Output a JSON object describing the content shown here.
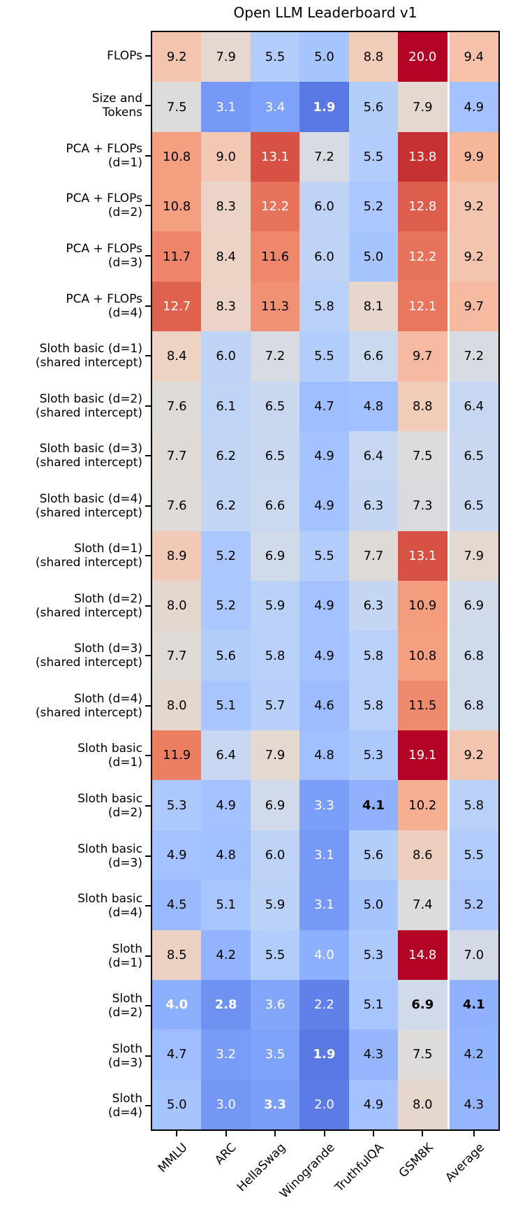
{
  "title": "Open LLM Leaderboard v1",
  "chart_data": {
    "type": "heatmap",
    "title": "Open LLM Leaderboard v1",
    "colormap": "coolwarm",
    "color_norm": {
      "vmin": 0.5,
      "vmax": 14.5
    },
    "max_color": "#b40426",
    "min_color": "#3b4cc0",
    "mid_color": "#dddcdb",
    "value_format": "one_decimal",
    "bold_rule": "column_minimum",
    "white_text_below": 4.05,
    "white_text_above": 12.05,
    "columns": [
      "MMLU",
      "ARC",
      "HellaSwag",
      "Winogrande",
      "TruthfulQA",
      "GSM8K",
      "Average"
    ],
    "separator_before_column": 6,
    "rows": [
      {
        "label": "FLOPs",
        "label_lines": [
          "FLOPs"
        ],
        "values": [
          9.2,
          7.9,
          5.5,
          5.0,
          8.8,
          20.0,
          9.4
        ]
      },
      {
        "label": "Size and Tokens",
        "label_lines": [
          "Size and",
          "Tokens"
        ],
        "values": [
          7.5,
          3.1,
          3.4,
          1.9,
          5.6,
          7.9,
          4.9
        ]
      },
      {
        "label": "PCA + FLOPs (d=1)",
        "label_lines": [
          "PCA + FLOPs",
          "(d=1)"
        ],
        "values": [
          10.8,
          9.0,
          13.1,
          7.2,
          5.5,
          13.8,
          9.9
        ]
      },
      {
        "label": "PCA + FLOPs (d=2)",
        "label_lines": [
          "PCA + FLOPs",
          "(d=2)"
        ],
        "values": [
          10.8,
          8.3,
          12.2,
          6.0,
          5.2,
          12.8,
          9.2
        ]
      },
      {
        "label": "PCA + FLOPs (d=3)",
        "label_lines": [
          "PCA + FLOPs",
          "(d=3)"
        ],
        "values": [
          11.7,
          8.4,
          11.6,
          6.0,
          5.0,
          12.2,
          9.2
        ]
      },
      {
        "label": "PCA + FLOPs (d=4)",
        "label_lines": [
          "PCA + FLOPs",
          "(d=4)"
        ],
        "values": [
          12.7,
          8.3,
          11.3,
          5.8,
          8.1,
          12.1,
          9.7
        ]
      },
      {
        "label": "Sloth basic (d=1) (shared intercept)",
        "label_lines": [
          "Sloth basic (d=1)",
          "(shared intercept)"
        ],
        "values": [
          8.4,
          6.0,
          7.2,
          5.5,
          6.6,
          9.7,
          7.2
        ]
      },
      {
        "label": "Sloth basic (d=2) (shared intercept)",
        "label_lines": [
          "Sloth basic (d=2)",
          "(shared intercept)"
        ],
        "values": [
          7.6,
          6.1,
          6.5,
          4.7,
          4.8,
          8.8,
          6.4
        ]
      },
      {
        "label": "Sloth basic (d=3) (shared intercept)",
        "label_lines": [
          "Sloth basic (d=3)",
          "(shared intercept)"
        ],
        "values": [
          7.7,
          6.2,
          6.5,
          4.9,
          6.4,
          7.5,
          6.5
        ]
      },
      {
        "label": "Sloth basic (d=4) (shared intercept)",
        "label_lines": [
          "Sloth basic (d=4)",
          "(shared intercept)"
        ],
        "values": [
          7.6,
          6.2,
          6.6,
          4.9,
          6.3,
          7.3,
          6.5
        ]
      },
      {
        "label": "Sloth (d=1) (shared intercept)",
        "label_lines": [
          "Sloth (d=1)",
          "(shared intercept)"
        ],
        "values": [
          8.9,
          5.2,
          6.9,
          5.5,
          7.7,
          13.1,
          7.9
        ]
      },
      {
        "label": "Sloth (d=2) (shared intercept)",
        "label_lines": [
          "Sloth (d=2)",
          "(shared intercept)"
        ],
        "values": [
          8.0,
          5.2,
          5.9,
          4.9,
          6.3,
          10.9,
          6.9
        ]
      },
      {
        "label": "Sloth (d=3) (shared intercept)",
        "label_lines": [
          "Sloth (d=3)",
          "(shared intercept)"
        ],
        "values": [
          7.7,
          5.6,
          5.8,
          4.9,
          5.8,
          10.8,
          6.8
        ]
      },
      {
        "label": "Sloth (d=4) (shared intercept)",
        "label_lines": [
          "Sloth (d=4)",
          "(shared intercept)"
        ],
        "values": [
          8.0,
          5.1,
          5.7,
          4.6,
          5.8,
          11.5,
          6.8
        ]
      },
      {
        "label": "Sloth basic (d=1)",
        "label_lines": [
          "Sloth basic",
          "(d=1)"
        ],
        "values": [
          11.9,
          6.4,
          7.9,
          4.8,
          5.3,
          19.1,
          9.2
        ]
      },
      {
        "label": "Sloth basic (d=2)",
        "label_lines": [
          "Sloth basic",
          "(d=2)"
        ],
        "values": [
          5.3,
          4.9,
          6.9,
          3.3,
          4.1,
          10.2,
          5.8
        ]
      },
      {
        "label": "Sloth basic (d=3)",
        "label_lines": [
          "Sloth basic",
          "(d=3)"
        ],
        "values": [
          4.9,
          4.8,
          6.0,
          3.1,
          5.6,
          8.6,
          5.5
        ]
      },
      {
        "label": "Sloth basic (d=4)",
        "label_lines": [
          "Sloth basic",
          "(d=4)"
        ],
        "values": [
          4.5,
          5.1,
          5.9,
          3.1,
          5.0,
          7.4,
          5.2
        ]
      },
      {
        "label": "Sloth (d=1)",
        "label_lines": [
          "Sloth",
          "(d=1)"
        ],
        "values": [
          8.5,
          4.2,
          5.5,
          4.0,
          5.3,
          14.8,
          7.0
        ]
      },
      {
        "label": "Sloth (d=2)",
        "label_lines": [
          "Sloth",
          "(d=2)"
        ],
        "values": [
          4.0,
          2.8,
          3.6,
          2.2,
          5.1,
          6.9,
          4.1
        ]
      },
      {
        "label": "Sloth (d=3)",
        "label_lines": [
          "Sloth",
          "(d=3)"
        ],
        "values": [
          4.7,
          3.2,
          3.5,
          1.9,
          4.3,
          7.5,
          4.2
        ]
      },
      {
        "label": "Sloth (d=4)",
        "label_lines": [
          "Sloth",
          "(d=4)"
        ],
        "values": [
          5.0,
          3.0,
          3.3,
          2.0,
          4.9,
          8.0,
          4.3
        ]
      }
    ]
  }
}
